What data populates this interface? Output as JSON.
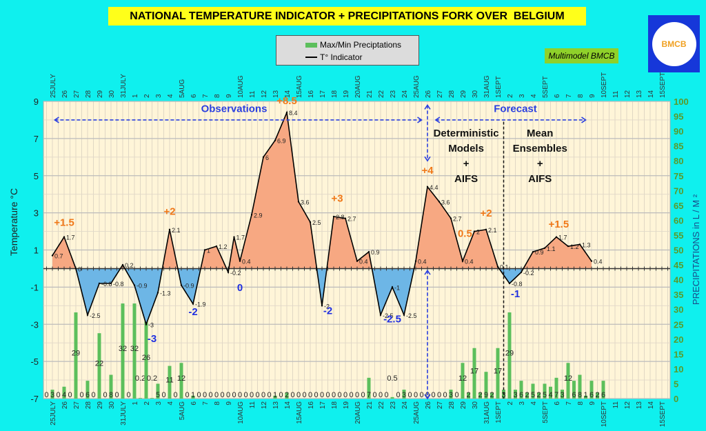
{
  "header": {
    "title": "NATIONAL TEMPERATURE INDICATOR + PRECIPITATIONS FORK OVER  BELGIUM",
    "legend_precip": "Max/Min Preciptations",
    "legend_temp": "T° Indicator",
    "badge": "Multimodel BMCB",
    "logo_text": "BMCB"
  },
  "colors": {
    "positive_fill": "#f7a882",
    "negative_fill": "#6db6e6",
    "bars": "#5cbf5c",
    "temp_line": "#000000",
    "annot_pos": "#f07818",
    "annot_neg": "#1f2fe0",
    "plot_bg": "#fff5d8",
    "background": "#0ff0ee"
  },
  "chart_data": {
    "type": "bar+area-line",
    "title": "NATIONAL TEMPERATURE INDICATOR + PRECIPITATIONS FORK OVER  BELGIUM",
    "ylabel": "Temperature   °C",
    "y2label": "PRECIPITATIONS in L / M ²",
    "ylim": [
      -7,
      9
    ],
    "y2lim": [
      0,
      100
    ],
    "yticks": [
      "9",
      "7",
      "5",
      "3",
      "1",
      "-1",
      "-3",
      "-5",
      "-7"
    ],
    "y2ticks": [
      "100",
      "95",
      "90",
      "85",
      "80",
      "75",
      "70",
      "65",
      "60",
      "55",
      "50",
      "45",
      "40",
      "35",
      "30",
      "25",
      "20",
      "15",
      "10",
      "5",
      "0"
    ],
    "x_unit": "day offset from 25 July",
    "date_labels": [
      "25JULY",
      "26",
      "27",
      "28",
      "29",
      "30",
      "31JULY",
      "1",
      "2",
      "3",
      "4",
      "5AUG",
      "6",
      "7",
      "8",
      "9",
      "10AUG",
      "11",
      "12",
      "13",
      "14",
      "15AUG",
      "16",
      "17",
      "18",
      "19",
      "20AUG",
      "21",
      "22",
      "23",
      "24",
      "25AUG",
      "26",
      "27",
      "28",
      "29",
      "30",
      "31AUG",
      "1SEPT",
      "2",
      "3",
      "4",
      "5SEPT",
      "6",
      "7",
      "8",
      "9",
      "10SEPT",
      "11",
      "12",
      "13",
      "14",
      "15SEPT"
    ],
    "temperature": {
      "name": "T° Indicator",
      "x": [
        0,
        1,
        2,
        3,
        4,
        5,
        6,
        7,
        8,
        9,
        10,
        11,
        12,
        13,
        14,
        15,
        15.5,
        16,
        17,
        18,
        19,
        20,
        21,
        22,
        23,
        24,
        25,
        26,
        27,
        28,
        29,
        30,
        31,
        32,
        33,
        34,
        35,
        36,
        37,
        38,
        39,
        40,
        41,
        42,
        43,
        44,
        45,
        46
      ],
      "y": [
        0.7,
        1.7,
        0,
        -2.5,
        -0.8,
        -0.8,
        0.2,
        -0.9,
        -3,
        -1.3,
        2.1,
        -0.9,
        -1.9,
        1,
        1.2,
        -0.2,
        1.7,
        0.4,
        2.9,
        6,
        6.9,
        8.4,
        3.6,
        2.5,
        -2,
        2.8,
        2.7,
        0.4,
        0.9,
        -2.5,
        -1,
        -2.5,
        0.4,
        4.4,
        3.6,
        2.7,
        0.4,
        2,
        2.1,
        0.1,
        -0.8,
        -0.2,
        0.9,
        1.1,
        1.7,
        1.2,
        1.3,
        0.4
      ]
    },
    "precipitation": {
      "name": "Max/Min Preciptations",
      "x_start": -0.5,
      "x_step": 0.5,
      "values": [
        0,
        3,
        0,
        4,
        0,
        29,
        0,
        6,
        0,
        22,
        0,
        8,
        0,
        32,
        0,
        32,
        0.2,
        26,
        0.2,
        5,
        0,
        11,
        0,
        12,
        0,
        1,
        0,
        0,
        0,
        0,
        0,
        0,
        0,
        0,
        0,
        0,
        0,
        0,
        0,
        1,
        0,
        2,
        0,
        0,
        0,
        0,
        0,
        0,
        0,
        0,
        0,
        0,
        0,
        0,
        0,
        7,
        0,
        0,
        0,
        0.5,
        0,
        3,
        0,
        0,
        0,
        0,
        0,
        0,
        0,
        3,
        0,
        12,
        2,
        17,
        2,
        9,
        2,
        17,
        3,
        29,
        3,
        6,
        2,
        5,
        2,
        5,
        4,
        7,
        3,
        12,
        6,
        8,
        1,
        6,
        2,
        6
      ]
    },
    "annotations_pos": [
      "+1.5",
      "+2",
      "+8.5",
      "+3",
      "+4",
      "0.5",
      "+2",
      "+1.5"
    ],
    "annotations_neg": [
      "-3",
      "-2",
      "0",
      "-2",
      "-2.5",
      "-1"
    ],
    "periods": {
      "observations": "Observations",
      "forecast": "Forecast",
      "det_lines": [
        "Deterministic",
        "Models",
        "+",
        "AIFS"
      ],
      "ens_lines": [
        "Mean",
        "Ensembles",
        "+",
        "AIFS"
      ]
    }
  }
}
